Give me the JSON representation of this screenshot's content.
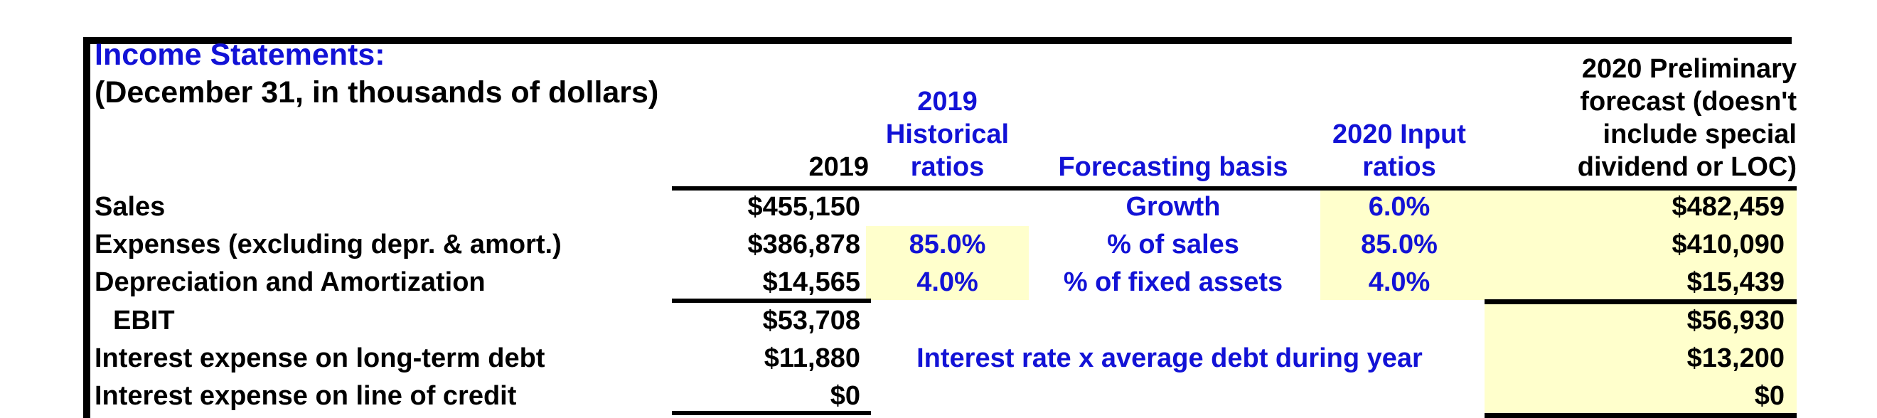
{
  "title": "Income Statements:",
  "subtitle": "(December 31, in thousands of dollars)",
  "colors": {
    "accent_blue": "#1212D6",
    "highlight_yellow": "#FFFFCC",
    "text_black": "#000000",
    "background": "#FFFFFF"
  },
  "columns": {
    "year_2019": "2019",
    "historical_ratios": [
      "2019",
      "Historical",
      "ratios"
    ],
    "forecasting_basis": "Forecasting basis",
    "input_ratios": [
      "2020 Input",
      "ratios"
    ],
    "forecast": [
      "2020 Preliminary",
      "forecast (doesn't",
      "include special",
      "dividend or LOC)"
    ]
  },
  "rows": [
    {
      "label": "Sales",
      "y2019": "$455,150",
      "hist": "",
      "basis": "Growth",
      "input": "6.0%",
      "forecast": "$482,459"
    },
    {
      "label": "Expenses (excluding depr. & amort.)",
      "y2019": "$386,878",
      "hist": "85.0%",
      "basis": "% of sales",
      "input": "85.0%",
      "forecast": "$410,090"
    },
    {
      "label": "Depreciation and Amortization",
      "y2019": "$14,565",
      "hist": "4.0%",
      "basis": "% of fixed assets",
      "input": "4.0%",
      "forecast": "$15,439"
    },
    {
      "label": "EBIT",
      "y2019": "$53,708",
      "hist": "",
      "basis": "",
      "input": "",
      "forecast": "$56,930"
    },
    {
      "label": "Interest expense on long-term debt",
      "y2019": "$11,880",
      "note": "Interest rate x average debt during year",
      "forecast": "$13,200"
    },
    {
      "label": "Interest expense on line of credit",
      "y2019": "$0",
      "hist": "",
      "basis": "",
      "input": "",
      "forecast": "$0"
    }
  ]
}
